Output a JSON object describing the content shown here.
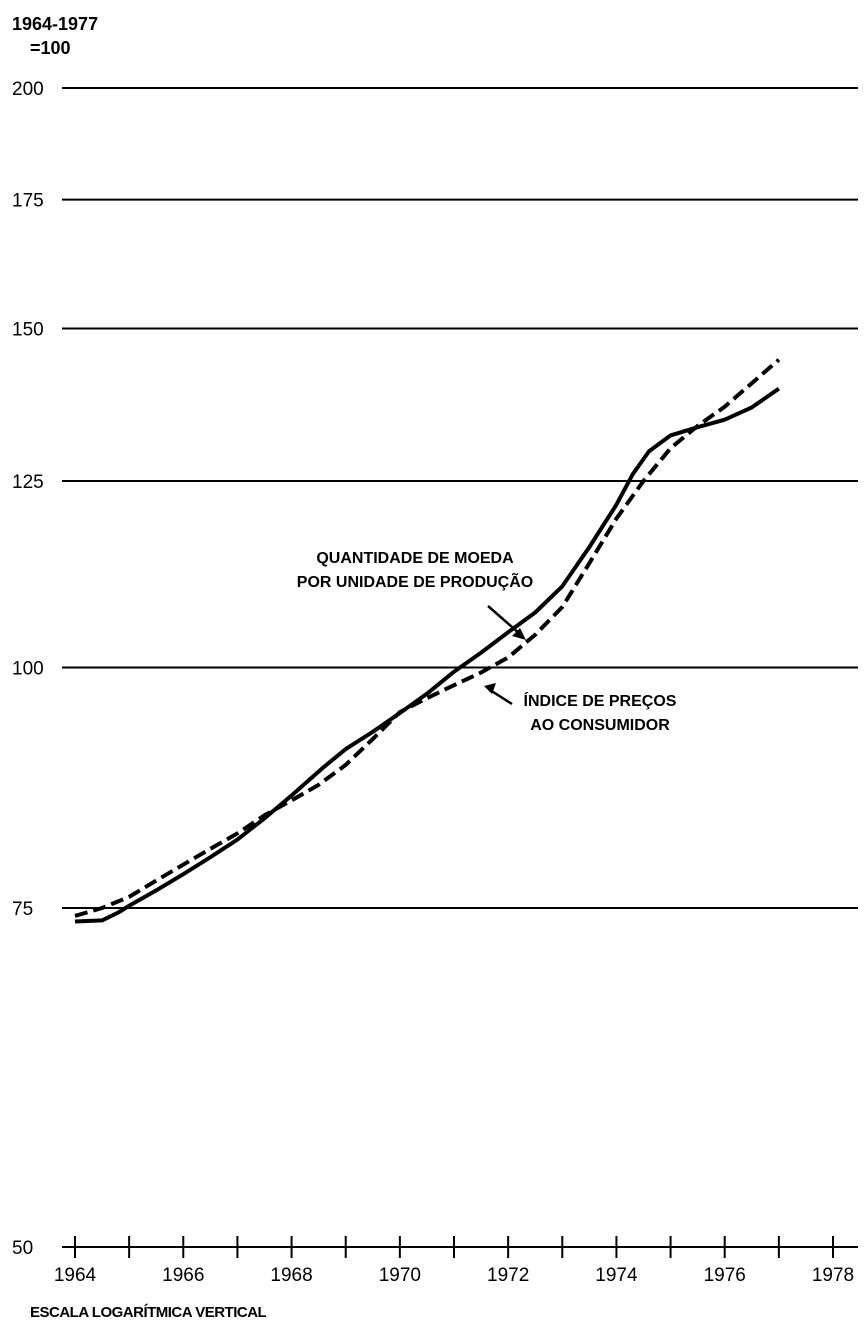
{
  "chart_data": {
    "type": "line",
    "title": "",
    "ylabel": "1964-1977\n=100",
    "ylabel_lines": [
      "1964-1977",
      "=100"
    ],
    "xlabel": "",
    "yscale": "log",
    "ylim": [
      50,
      200
    ],
    "xlim": [
      1964,
      1978
    ],
    "y_ticks": [
      200,
      175,
      150,
      125,
      100,
      75,
      50
    ],
    "x_ticks": [
      1964,
      1966,
      1968,
      1970,
      1972,
      1974,
      1976,
      1978
    ],
    "grid": "horizontal",
    "footnote": "ESCALA LOGARÍTMICA VERTICAL",
    "series": [
      {
        "name": "QUANTIDADE DE MOEDA POR UNIDADE DE PRODUÇÃO",
        "label_lines": [
          "QUANTIDADE DE MOEDA",
          "POR UNIDADE DE PRODUÇÃO"
        ],
        "style": "solid",
        "x": [
          1964.0,
          1964.5,
          1964.8,
          1965.0,
          1965.5,
          1966.0,
          1966.5,
          1967.0,
          1967.5,
          1968.0,
          1968.3,
          1968.6,
          1969.0,
          1969.5,
          1970.0,
          1970.5,
          1971.0,
          1971.5,
          1972.0,
          1972.5,
          1973.0,
          1973.5,
          1974.0,
          1974.3,
          1974.6,
          1975.0,
          1975.5,
          1976.0,
          1976.5,
          1977.0
        ],
        "y": [
          73.8,
          73.9,
          74.6,
          75.2,
          76.6,
          78.1,
          79.7,
          81.4,
          83.5,
          85.8,
          87.3,
          88.8,
          90.7,
          92.6,
          94.7,
          96.9,
          99.5,
          101.8,
          104.3,
          106.8,
          110.2,
          115.5,
          121.5,
          126.0,
          129.5,
          132.0,
          133.3,
          134.5,
          136.5,
          139.6
        ]
      },
      {
        "name": "ÍNDICE DE PREÇOS AO CONSUMIDOR",
        "label_lines": [
          "ÍNDICE DE PREÇOS",
          "AO CONSUMIDOR"
        ],
        "style": "dashed",
        "x": [
          1964.0,
          1964.5,
          1965.0,
          1965.5,
          1966.0,
          1966.5,
          1967.0,
          1967.5,
          1968.0,
          1968.5,
          1969.0,
          1969.5,
          1970.0,
          1970.5,
          1971.0,
          1971.5,
          1972.0,
          1972.5,
          1973.0,
          1973.5,
          1974.0,
          1974.5,
          1975.0,
          1975.5,
          1976.0,
          1976.5,
          1977.0
        ],
        "y": [
          74.3,
          75.0,
          76.0,
          77.5,
          79.0,
          80.5,
          82.0,
          83.8,
          85.3,
          86.9,
          89.0,
          91.8,
          94.8,
          96.4,
          97.9,
          99.4,
          101.2,
          104.0,
          107.5,
          113.3,
          119.5,
          125.0,
          130.0,
          133.5,
          136.6,
          140.5,
          144.5
        ]
      }
    ]
  }
}
